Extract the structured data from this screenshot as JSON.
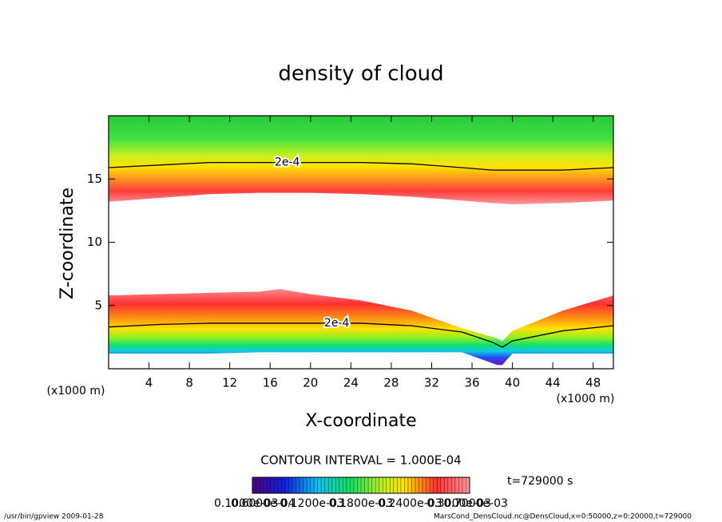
{
  "chart_data": {
    "type": "contour",
    "title": "density of cloud",
    "x_label": "X-coordinate",
    "y_label": "Z-coordinate",
    "x_unit": "(x1000 m)",
    "xlim": [
      0,
      50
    ],
    "xticks": [
      4,
      8,
      12,
      16,
      20,
      24,
      28,
      32,
      36,
      40,
      44,
      48
    ],
    "ylim": [
      0,
      20
    ],
    "yticks": [
      5,
      10,
      15
    ],
    "bands": [
      {
        "x": [
          0,
          5,
          10,
          15,
          20,
          25,
          30,
          35,
          38,
          40,
          45,
          50
        ],
        "bottom": [
          13.2,
          13.5,
          13.8,
          13.9,
          13.9,
          13.8,
          13.6,
          13.3,
          13.1,
          13.0,
          13.1,
          13.3
        ],
        "top": [
          20,
          20,
          20,
          20,
          20,
          20,
          20,
          20,
          20,
          20,
          20,
          20
        ]
      },
      {
        "x": [
          0,
          5,
          10,
          15,
          17,
          20,
          25,
          30,
          35,
          38.5,
          39,
          40,
          45,
          50
        ],
        "bottom": [
          1.2,
          1.2,
          1.2,
          1.3,
          1.3,
          1.3,
          1.3,
          1.3,
          1.3,
          0.3,
          0.3,
          1.2,
          1.2,
          1.2
        ],
        "top": [
          5.8,
          5.9,
          6.0,
          6.1,
          6.3,
          5.9,
          5.4,
          4.6,
          3.2,
          2.4,
          2.2,
          3.0,
          4.6,
          5.8
        ]
      }
    ],
    "contours": [
      {
        "label": "2e-4",
        "label_x": 17.7,
        "x": [
          0,
          5,
          10,
          15,
          20,
          25,
          30,
          35,
          38,
          40,
          45,
          50
        ],
        "z": [
          15.9,
          16.1,
          16.3,
          16.3,
          16.3,
          16.3,
          16.2,
          15.9,
          15.7,
          15.7,
          15.7,
          15.9
        ]
      },
      {
        "label": "2e-4",
        "label_x": 22.6,
        "x": [
          0,
          5,
          10,
          15,
          20,
          25,
          30,
          35,
          38,
          39,
          40,
          45,
          50
        ],
        "z": [
          3.3,
          3.5,
          3.6,
          3.6,
          3.6,
          3.6,
          3.4,
          2.9,
          2.1,
          1.7,
          2.2,
          3.0,
          3.4
        ]
      }
    ],
    "contour_interval": "CONTOUR INTERVAL = 1.000E-04",
    "time": "t=729000 s",
    "colorbar_labels": [
      "0.1000e-03",
      "0.6000e-04",
      "0.1200e-03",
      "0.1800e-03",
      "0.2400e-03",
      "0.3000e-03",
      "0.7000e-03"
    ],
    "footer_left": "/usr/bin/gpview   2009-01-28",
    "footer_right": "MarsCond_DensCloud.nc@DensCloud,x=0:50000,z=0:20000,t=729000"
  }
}
